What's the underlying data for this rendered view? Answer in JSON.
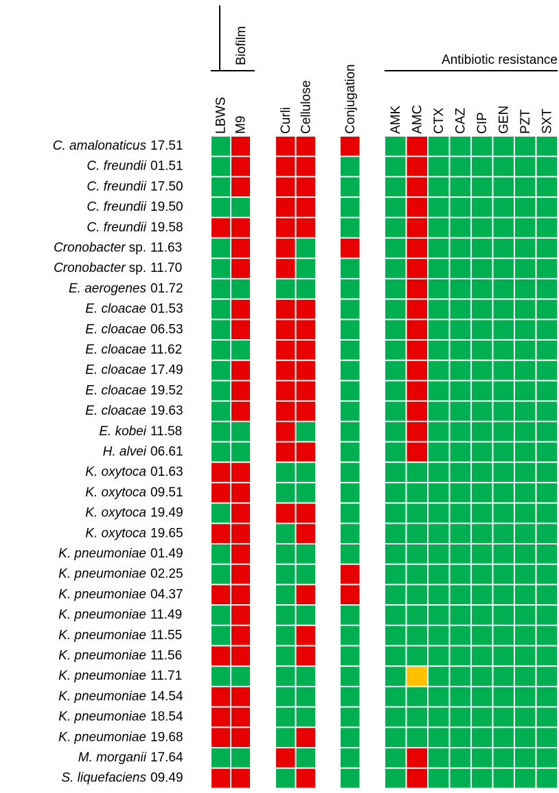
{
  "groups": [
    {
      "label": "Biofilm",
      "columns": [
        "LBWS",
        "M9"
      ]
    },
    {
      "columns": [
        "Curli",
        "Cellulose"
      ]
    },
    {
      "columns": [
        "Conjugation"
      ]
    },
    {
      "label": "Antibiotic resistance",
      "columns": [
        "AMK",
        "AMC",
        "CTX",
        "CAZ",
        "CIP",
        "GEN",
        "PZT",
        "SXT"
      ]
    }
  ],
  "rows": [
    {
      "name": "C. amalonaticus",
      "strain": "17.51",
      "cells": [
        "#00b050",
        "#e60000",
        "#e60000",
        "#e60000",
        "#e60000",
        "#00b050",
        "#e60000",
        "#00b050",
        "#00b050",
        "#00b050",
        "#00b050",
        "#00b050",
        "#00b050"
      ]
    },
    {
      "name": "C. freundii",
      "strain": "01.51",
      "cells": [
        "#00b050",
        "#e60000",
        "#e60000",
        "#e60000",
        "#00b050",
        "#00b050",
        "#e60000",
        "#00b050",
        "#00b050",
        "#00b050",
        "#00b050",
        "#00b050",
        "#00b050"
      ]
    },
    {
      "name": "C. freundii",
      "strain": "17.50",
      "cells": [
        "#00b050",
        "#e60000",
        "#e60000",
        "#e60000",
        "#00b050",
        "#00b050",
        "#e60000",
        "#00b050",
        "#00b050",
        "#00b050",
        "#00b050",
        "#00b050",
        "#00b050"
      ]
    },
    {
      "name": "C. freundii",
      "strain": "19.50",
      "cells": [
        "#00b050",
        "#00b050",
        "#e60000",
        "#e60000",
        "#00b050",
        "#00b050",
        "#e60000",
        "#00b050",
        "#00b050",
        "#00b050",
        "#00b050",
        "#00b050",
        "#00b050"
      ]
    },
    {
      "name": "C. freundii",
      "strain": "19.58",
      "cells": [
        "#e60000",
        "#e60000",
        "#e60000",
        "#e60000",
        "#00b050",
        "#00b050",
        "#e60000",
        "#00b050",
        "#00b050",
        "#00b050",
        "#00b050",
        "#00b050",
        "#00b050"
      ]
    },
    {
      "name": "Cronobacter",
      "suffix": "sp.",
      "strain": "11.63",
      "cells": [
        "#00b050",
        "#e60000",
        "#e60000",
        "#00b050",
        "#e60000",
        "#00b050",
        "#e60000",
        "#00b050",
        "#00b050",
        "#00b050",
        "#00b050",
        "#00b050",
        "#00b050"
      ]
    },
    {
      "name": "Cronobacter",
      "suffix": "sp.",
      "strain": "11.70",
      "cells": [
        "#00b050",
        "#e60000",
        "#e60000",
        "#00b050",
        "#00b050",
        "#00b050",
        "#e60000",
        "#00b050",
        "#00b050",
        "#00b050",
        "#00b050",
        "#00b050",
        "#00b050"
      ]
    },
    {
      "name": "E. aerogenes",
      "strain": "01.72",
      "cells": [
        "#00b050",
        "#00b050",
        "#00b050",
        "#00b050",
        "#00b050",
        "#00b050",
        "#e60000",
        "#00b050",
        "#00b050",
        "#00b050",
        "#00b050",
        "#00b050",
        "#00b050"
      ]
    },
    {
      "name": "E. cloacae",
      "strain": "01.53",
      "cells": [
        "#00b050",
        "#e60000",
        "#e60000",
        "#e60000",
        "#00b050",
        "#00b050",
        "#e60000",
        "#00b050",
        "#00b050",
        "#00b050",
        "#00b050",
        "#00b050",
        "#00b050"
      ]
    },
    {
      "name": "E. cloacae",
      "strain": "06.53",
      "cells": [
        "#00b050",
        "#e60000",
        "#e60000",
        "#e60000",
        "#00b050",
        "#00b050",
        "#e60000",
        "#00b050",
        "#00b050",
        "#00b050",
        "#00b050",
        "#00b050",
        "#00b050"
      ]
    },
    {
      "name": "E. cloacae",
      "strain": "11.62",
      "cells": [
        "#00b050",
        "#00b050",
        "#e60000",
        "#e60000",
        "#00b050",
        "#00b050",
        "#e60000",
        "#00b050",
        "#00b050",
        "#00b050",
        "#00b050",
        "#00b050",
        "#00b050"
      ]
    },
    {
      "name": "E. cloacae",
      "strain": "17.49",
      "cells": [
        "#00b050",
        "#e60000",
        "#e60000",
        "#e60000",
        "#00b050",
        "#00b050",
        "#e60000",
        "#00b050",
        "#00b050",
        "#00b050",
        "#00b050",
        "#00b050",
        "#00b050"
      ]
    },
    {
      "name": "E. cloacae",
      "strain": "19.52",
      "cells": [
        "#00b050",
        "#e60000",
        "#e60000",
        "#e60000",
        "#00b050",
        "#00b050",
        "#e60000",
        "#00b050",
        "#00b050",
        "#00b050",
        "#00b050",
        "#00b050",
        "#00b050"
      ]
    },
    {
      "name": "E. cloacae",
      "strain": "19.63",
      "cells": [
        "#00b050",
        "#e60000",
        "#e60000",
        "#e60000",
        "#00b050",
        "#00b050",
        "#e60000",
        "#00b050",
        "#00b050",
        "#00b050",
        "#00b050",
        "#00b050",
        "#00b050"
      ]
    },
    {
      "name": "E. kobei",
      "strain": "11.58",
      "cells": [
        "#00b050",
        "#00b050",
        "#e60000",
        "#00b050",
        "#00b050",
        "#00b050",
        "#e60000",
        "#00b050",
        "#00b050",
        "#00b050",
        "#00b050",
        "#00b050",
        "#00b050"
      ]
    },
    {
      "name": "H. alvei",
      "strain": "06.61",
      "cells": [
        "#00b050",
        "#00b050",
        "#e60000",
        "#e60000",
        "#00b050",
        "#00b050",
        "#e60000",
        "#00b050",
        "#00b050",
        "#00b050",
        "#00b050",
        "#00b050",
        "#00b050"
      ]
    },
    {
      "name": "K. oxytoca",
      "strain": "01.63",
      "cells": [
        "#e60000",
        "#e60000",
        "#00b050",
        "#00b050",
        "#00b050",
        "#00b050",
        "#00b050",
        "#00b050",
        "#00b050",
        "#00b050",
        "#00b050",
        "#00b050",
        "#00b050"
      ]
    },
    {
      "name": "K. oxytoca",
      "strain": "09.51",
      "cells": [
        "#e60000",
        "#e60000",
        "#00b050",
        "#00b050",
        "#00b050",
        "#00b050",
        "#00b050",
        "#00b050",
        "#00b050",
        "#00b050",
        "#00b050",
        "#00b050",
        "#00b050"
      ]
    },
    {
      "name": "K. oxytoca",
      "strain": "19.49",
      "cells": [
        "#00b050",
        "#e60000",
        "#e60000",
        "#e60000",
        "#00b050",
        "#00b050",
        "#00b050",
        "#00b050",
        "#00b050",
        "#00b050",
        "#00b050",
        "#00b050",
        "#00b050"
      ]
    },
    {
      "name": "K. oxytoca",
      "strain": "19.65",
      "cells": [
        "#e60000",
        "#e60000",
        "#00b050",
        "#e60000",
        "#00b050",
        "#00b050",
        "#00b050",
        "#00b050",
        "#00b050",
        "#00b050",
        "#00b050",
        "#00b050",
        "#00b050"
      ]
    },
    {
      "name": "K. pneumoniae",
      "strain": "01.49",
      "cells": [
        "#00b050",
        "#e60000",
        "#00b050",
        "#00b050",
        "#00b050",
        "#00b050",
        "#00b050",
        "#00b050",
        "#00b050",
        "#00b050",
        "#00b050",
        "#00b050",
        "#00b050"
      ]
    },
    {
      "name": "K. pneumoniae",
      "strain": "02.25",
      "cells": [
        "#00b050",
        "#e60000",
        "#00b050",
        "#00b050",
        "#e60000",
        "#00b050",
        "#00b050",
        "#00b050",
        "#00b050",
        "#00b050",
        "#00b050",
        "#00b050",
        "#00b050"
      ]
    },
    {
      "name": "K. pneumoniae",
      "strain": "04.37",
      "cells": [
        "#e60000",
        "#e60000",
        "#00b050",
        "#e60000",
        "#e60000",
        "#00b050",
        "#00b050",
        "#00b050",
        "#00b050",
        "#00b050",
        "#00b050",
        "#00b050",
        "#00b050"
      ]
    },
    {
      "name": "K. pneumoniae",
      "strain": "11.49",
      "cells": [
        "#00b050",
        "#e60000",
        "#00b050",
        "#00b050",
        "#00b050",
        "#00b050",
        "#00b050",
        "#00b050",
        "#00b050",
        "#00b050",
        "#00b050",
        "#00b050",
        "#00b050"
      ]
    },
    {
      "name": "K. pneumoniae",
      "strain": "11.55",
      "cells": [
        "#00b050",
        "#e60000",
        "#00b050",
        "#e60000",
        "#00b050",
        "#00b050",
        "#00b050",
        "#00b050",
        "#00b050",
        "#00b050",
        "#00b050",
        "#00b050",
        "#00b050"
      ]
    },
    {
      "name": "K. pneumoniae",
      "strain": "11.56",
      "cells": [
        "#e60000",
        "#e60000",
        "#00b050",
        "#e60000",
        "#00b050",
        "#00b050",
        "#00b050",
        "#00b050",
        "#00b050",
        "#00b050",
        "#00b050",
        "#00b050",
        "#00b050"
      ]
    },
    {
      "name": "K. pneumoniae",
      "strain": "11.71",
      "cells": [
        "#00b050",
        "#00b050",
        "#00b050",
        "#00b050",
        "#00b050",
        "#00b050",
        "#ffc000",
        "#00b050",
        "#00b050",
        "#00b050",
        "#00b050",
        "#00b050",
        "#00b050"
      ]
    },
    {
      "name": "K. pneumoniae",
      "strain": "14.54",
      "cells": [
        "#e60000",
        "#e60000",
        "#00b050",
        "#00b050",
        "#00b050",
        "#00b050",
        "#00b050",
        "#00b050",
        "#00b050",
        "#00b050",
        "#00b050",
        "#00b050",
        "#00b050"
      ]
    },
    {
      "name": "K. pneumoniae",
      "strain": "18.54",
      "cells": [
        "#e60000",
        "#e60000",
        "#00b050",
        "#00b050",
        "#00b050",
        "#00b050",
        "#00b050",
        "#00b050",
        "#00b050",
        "#00b050",
        "#00b050",
        "#00b050",
        "#00b050"
      ]
    },
    {
      "name": "K. pneumoniae",
      "strain": "19.68",
      "cells": [
        "#e60000",
        "#e60000",
        "#00b050",
        "#e60000",
        "#00b050",
        "#00b050",
        "#00b050",
        "#00b050",
        "#00b050",
        "#00b050",
        "#00b050",
        "#00b050",
        "#00b050"
      ]
    },
    {
      "name": "M. morganii",
      "strain": "17.64",
      "cells": [
        "#00b050",
        "#00b050",
        "#e60000",
        "#00b050",
        "#00b050",
        "#00b050",
        "#e60000",
        "#00b050",
        "#00b050",
        "#00b050",
        "#00b050",
        "#00b050",
        "#00b050"
      ]
    },
    {
      "name": "S. liquefaciens",
      "strain": "09.49",
      "cells": [
        "#e60000",
        "#e60000",
        "#00b050",
        "#e60000",
        "#00b050",
        "#00b050",
        "#e60000",
        "#00b050",
        "#00b050",
        "#00b050",
        "#00b050",
        "#00b050",
        "#00b050"
      ]
    }
  ]
}
